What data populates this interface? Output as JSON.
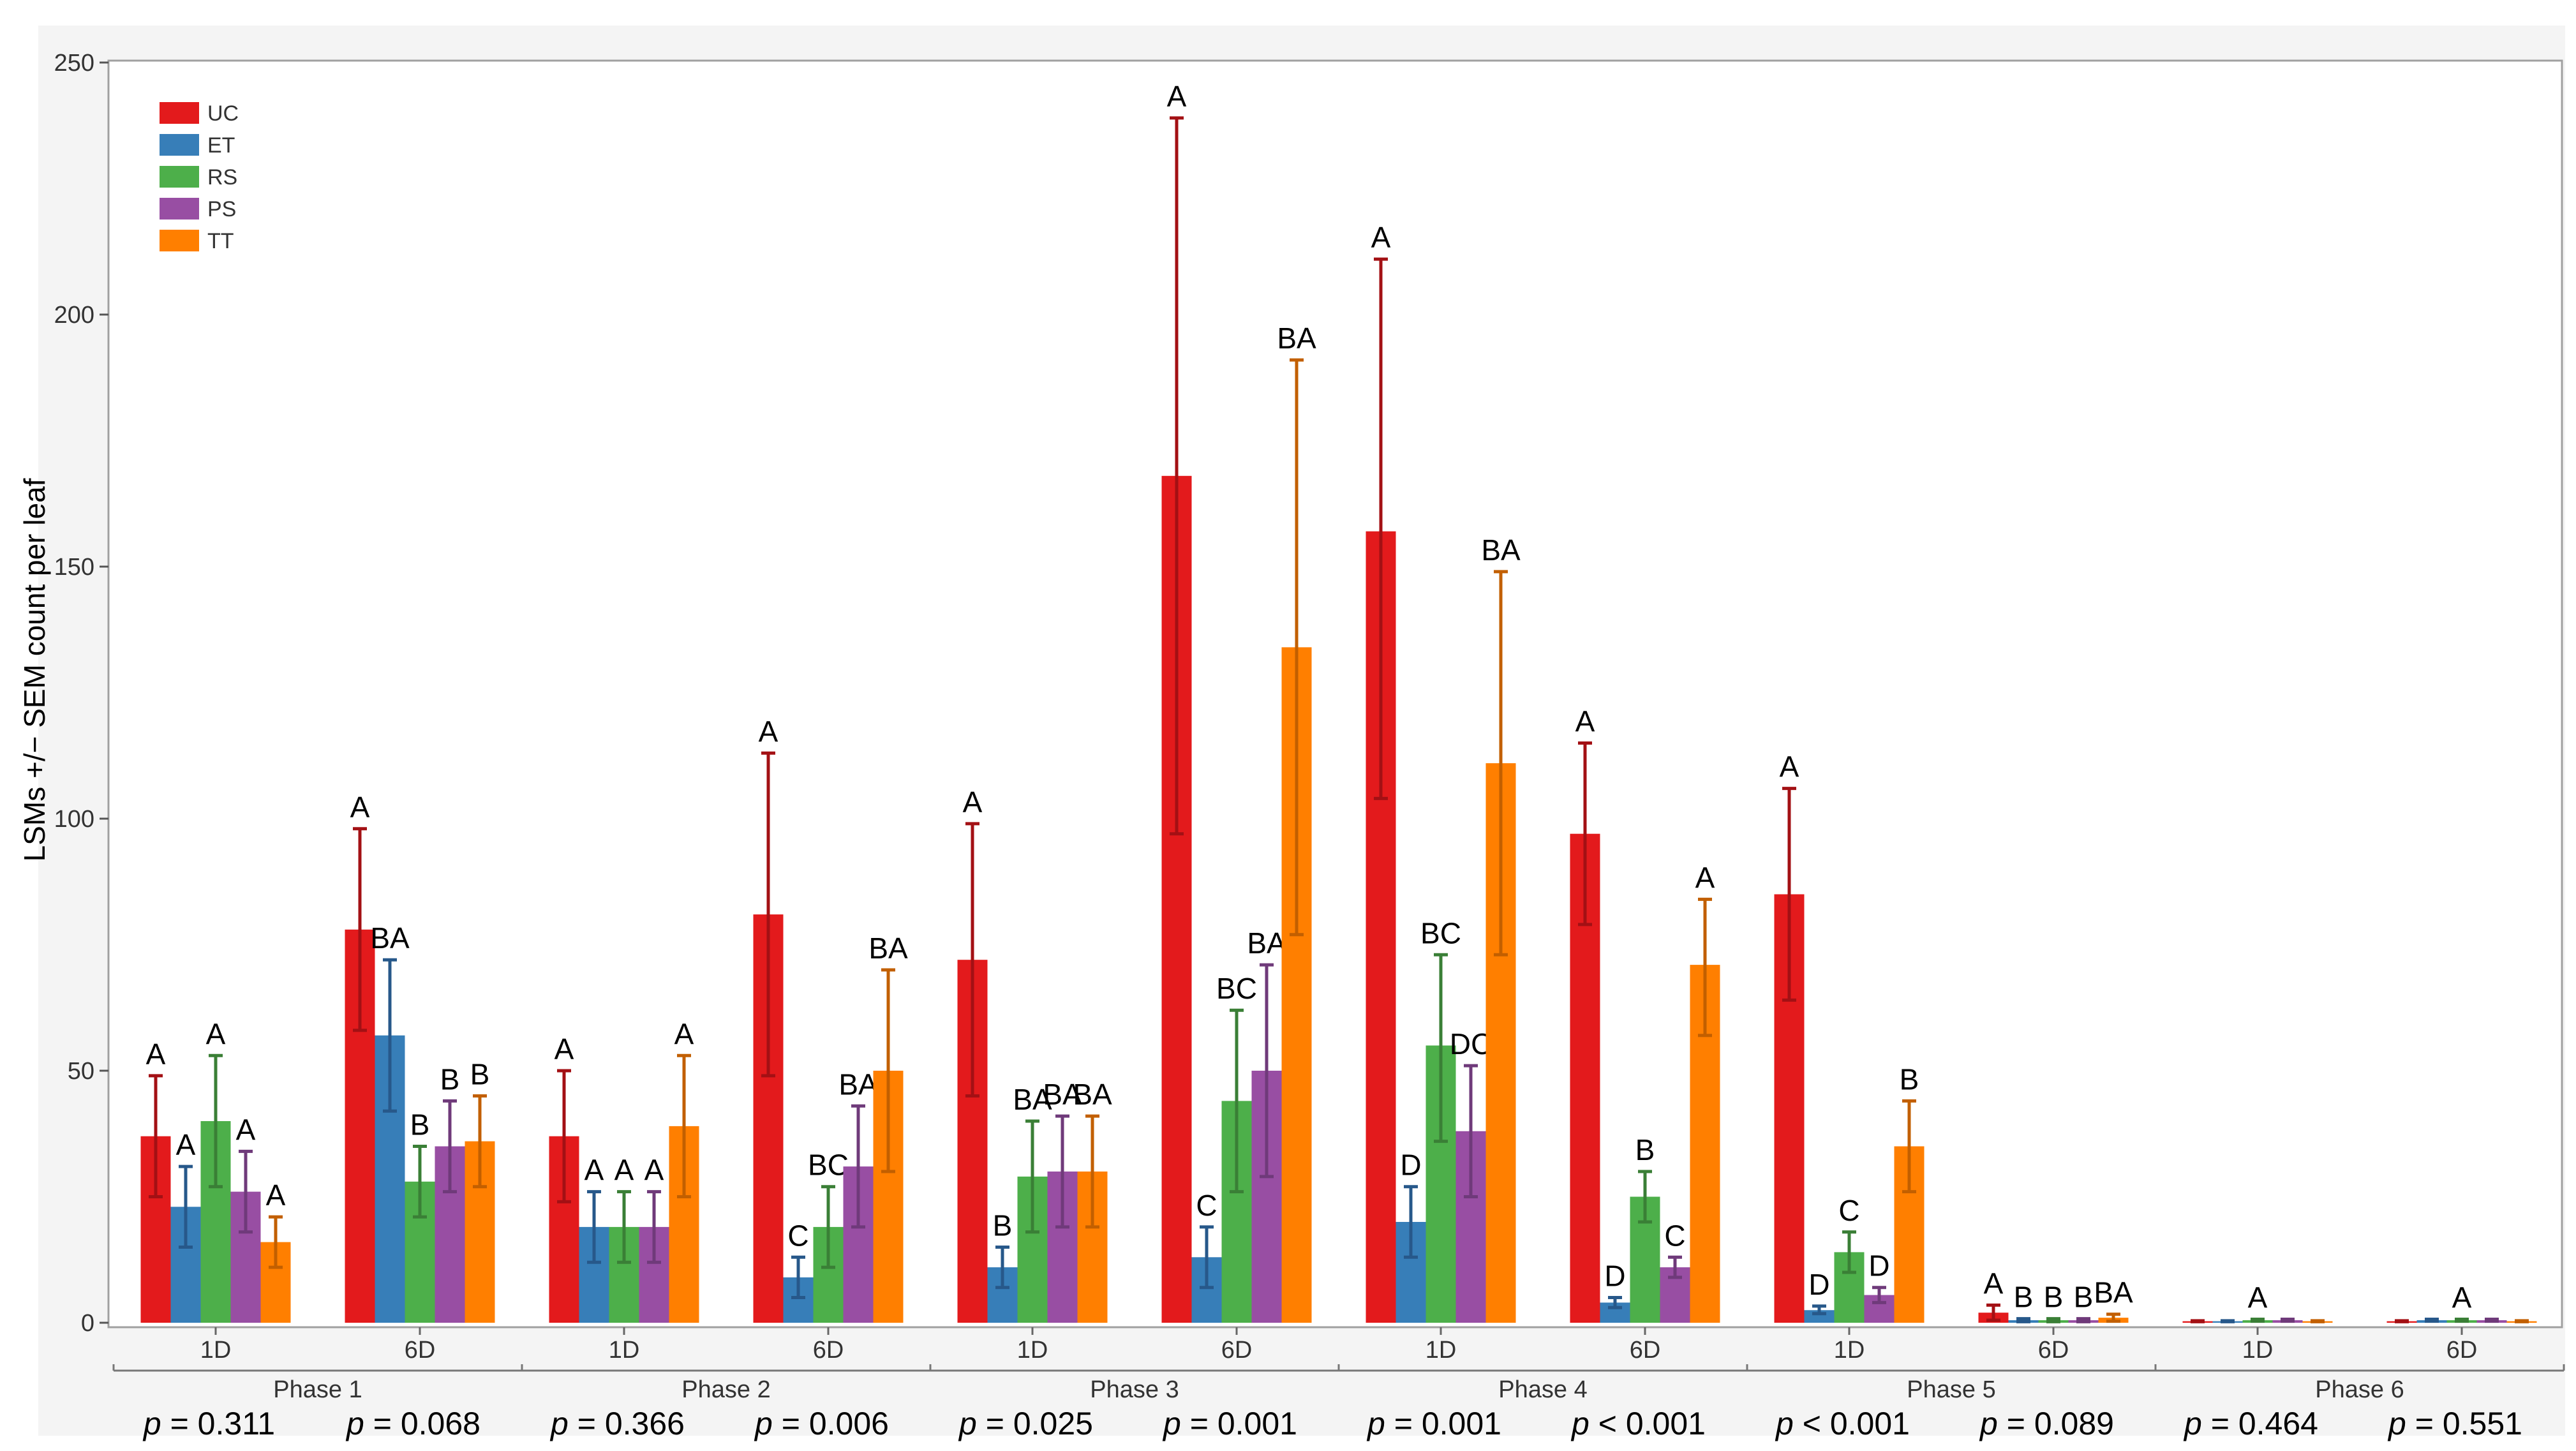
{
  "chart_data": {
    "type": "bar",
    "title": "",
    "ylabel": "LSMs +/− SEM count per leaf",
    "xlabel": "",
    "ylim": [
      0,
      250
    ],
    "yticks": [
      0,
      50,
      100,
      150,
      200,
      250
    ],
    "legend": {
      "position": "top-left",
      "entries": [
        {
          "name": "UC",
          "color": "#e31a1c"
        },
        {
          "name": "ET",
          "color": "#377eb8"
        },
        {
          "name": "RS",
          "color": "#4daf4a"
        },
        {
          "name": "PS",
          "color": "#984ea3"
        },
        {
          "name": "TT",
          "color": "#ff7f00"
        }
      ]
    },
    "phases": [
      {
        "label": "Phase 1",
        "groups": [
          {
            "label": "1D",
            "p_value": "= 0.311",
            "values": [
              37,
              23,
              40,
              26,
              16
            ],
            "errors": [
              [
                25,
                49
              ],
              [
                15,
                31
              ],
              [
                27,
                53
              ],
              [
                18,
                34
              ],
              [
                11,
                21
              ]
            ],
            "letters": [
              "A",
              "A",
              "A",
              "A",
              "A"
            ]
          },
          {
            "label": "6D",
            "p_value": "= 0.068",
            "values": [
              78,
              57,
              28,
              35,
              36
            ],
            "errors": [
              [
                58,
                98
              ],
              [
                42,
                72
              ],
              [
                21,
                35
              ],
              [
                26,
                44
              ],
              [
                27,
                45
              ]
            ],
            "letters": [
              "A",
              "BA",
              "B",
              "B",
              "B"
            ]
          }
        ]
      },
      {
        "label": "Phase 2",
        "groups": [
          {
            "label": "1D",
            "p_value": "= 0.366",
            "values": [
              37,
              19,
              19,
              19,
              39
            ],
            "errors": [
              [
                24,
                50
              ],
              [
                12,
                26
              ],
              [
                12,
                26
              ],
              [
                12,
                26
              ],
              [
                25,
                53
              ]
            ],
            "letters": [
              "A",
              "A",
              "A",
              "A",
              "A"
            ]
          },
          {
            "label": "6D",
            "p_value": "= 0.006",
            "values": [
              81,
              9,
              19,
              31,
              50
            ],
            "errors": [
              [
                49,
                113
              ],
              [
                5,
                13
              ],
              [
                11,
                27
              ],
              [
                19,
                43
              ],
              [
                30,
                70
              ]
            ],
            "letters": [
              "A",
              "C",
              "BC",
              "BA",
              "BA"
            ]
          }
        ]
      },
      {
        "label": "Phase 3",
        "groups": [
          {
            "label": "1D",
            "p_value": "= 0.025",
            "values": [
              72,
              11,
              29,
              30,
              30
            ],
            "errors": [
              [
                45,
                99
              ],
              [
                7,
                15
              ],
              [
                18,
                40
              ],
              [
                19,
                41
              ],
              [
                19,
                41
              ]
            ],
            "letters": [
              "A",
              "B",
              "BA",
              "BA",
              "BA"
            ]
          },
          {
            "label": "6D",
            "p_value": "= 0.001",
            "values": [
              168,
              13,
              44,
              50,
              134
            ],
            "errors": [
              [
                97,
                239
              ],
              [
                7,
                19
              ],
              [
                26,
                62
              ],
              [
                29,
                71
              ],
              [
                77,
                191
              ]
            ],
            "letters": [
              "A",
              "C",
              "BC",
              "BA",
              "BA"
            ]
          }
        ]
      },
      {
        "label": "Phase 4",
        "groups": [
          {
            "label": "1D",
            "p_value": "= 0.001",
            "values": [
              157,
              20,
              55,
              38,
              111
            ],
            "errors": [
              [
                104,
                211
              ],
              [
                13,
                27
              ],
              [
                36,
                73
              ],
              [
                25,
                51
              ],
              [
                73,
                149
              ]
            ],
            "letters": [
              "A",
              "D",
              "BC",
              "DC",
              "BA"
            ]
          },
          {
            "label": "6D",
            "p_value": "< 0.001",
            "values": [
              97,
              4,
              25,
              11,
              71
            ],
            "errors": [
              [
                79,
                115
              ],
              [
                3,
                5
              ],
              [
                20,
                30
              ],
              [
                9,
                13
              ],
              [
                57,
                84
              ]
            ],
            "letters": [
              "A",
              "D",
              "B",
              "C",
              "A"
            ]
          }
        ]
      },
      {
        "label": "Phase 5",
        "groups": [
          {
            "label": "1D",
            "p_value": "< 0.001",
            "values": [
              85,
              2.5,
              14,
              5.5,
              35
            ],
            "errors": [
              [
                64,
                106
              ],
              [
                1.8,
                3.3
              ],
              [
                10,
                18
              ],
              [
                4,
                7
              ],
              [
                26,
                44
              ]
            ],
            "letters": [
              "A",
              "D",
              "C",
              "D",
              "B"
            ]
          },
          {
            "label": "6D",
            "p_value": "= 0.089",
            "values": [
              2,
              0.5,
              0.5,
              0.5,
              1
            ],
            "errors": [
              [
                0.5,
                3.5
              ],
              [
                0.2,
                0.8
              ],
              [
                0.2,
                0.8
              ],
              [
                0.2,
                0.8
              ],
              [
                0.3,
                1.7
              ]
            ],
            "letters": [
              "A",
              "B",
              "B",
              "B",
              "BA"
            ]
          }
        ]
      },
      {
        "label": "Phase 6",
        "groups": [
          {
            "label": "1D",
            "p_value": "= 0.464",
            "values": [
              0.3,
              0.3,
              0.5,
              0.5,
              0.3
            ],
            "errors": [
              [
                0.2,
                0.4
              ],
              [
                0.2,
                0.4
              ],
              [
                0.3,
                0.7
              ],
              [
                0.3,
                0.7
              ],
              [
                0.2,
                0.4
              ]
            ],
            "letters": [
              "",
              "",
              "A",
              "",
              ""
            ]
          },
          {
            "label": "6D",
            "p_value": "= 0.551",
            "values": [
              0.3,
              0.5,
              0.5,
              0.5,
              0.3
            ],
            "errors": [
              [
                0.2,
                0.4
              ],
              [
                0.3,
                0.7
              ],
              [
                0.3,
                0.7
              ],
              [
                0.3,
                0.7
              ],
              [
                0.2,
                0.4
              ]
            ],
            "letters": [
              "",
              "",
              "A",
              "",
              ""
            ]
          }
        ]
      }
    ],
    "p_label": "p"
  }
}
